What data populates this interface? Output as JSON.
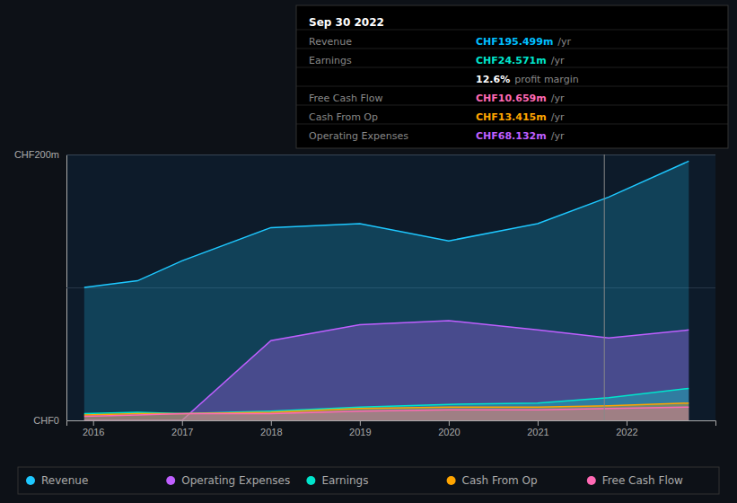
{
  "chart_data": {
    "type": "area",
    "x": [
      2015.9,
      2016.5,
      2017.0,
      2018.0,
      2019.0,
      2020.0,
      2021.0,
      2021.8,
      2022.7
    ],
    "xlim": [
      2015.7,
      2023.0
    ],
    "xticks": [
      2016,
      2017,
      2018,
      2019,
      2020,
      2021,
      2022
    ],
    "ylim": [
      0,
      200
    ],
    "yticks": [
      {
        "value": 0,
        "label": "CHF0"
      },
      {
        "value": 100,
        "label": ""
      },
      {
        "value": 200,
        "label": "CHF200m"
      }
    ],
    "grid": true,
    "legend": "bottom",
    "series": [
      {
        "name": "Revenue",
        "color": "#1ec8ff",
        "values": [
          100,
          105,
          120,
          145,
          148,
          135,
          148,
          168,
          195
        ]
      },
      {
        "name": "Operating Expenses",
        "color": "#bf5fff",
        "values": [
          0,
          0,
          0,
          60,
          72,
          75,
          68,
          62,
          68
        ]
      },
      {
        "name": "Earnings",
        "color": "#00e5cc",
        "values": [
          5,
          6,
          5,
          7,
          10,
          12,
          13,
          17,
          24
        ]
      },
      {
        "name": "Cash From Op",
        "color": "#ffa500",
        "values": [
          4,
          5,
          5,
          6,
          9,
          10,
          10,
          11,
          13
        ]
      },
      {
        "name": "Free Cash Flow",
        "color": "#ff69b4",
        "values": [
          3,
          4,
          5,
          5,
          7,
          8,
          8,
          9,
          10
        ]
      }
    ],
    "annotations": [
      {
        "text": "Sep 30 2022",
        "color": "#ffffff"
      },
      {
        "label": "Revenue",
        "value": "CHF195.499m",
        "unit": "/yr",
        "color": "#00bfff"
      },
      {
        "label": "Earnings",
        "value": "CHF24.571m",
        "unit": "/yr",
        "color": "#00e5cc"
      },
      {
        "value": "12.6%",
        "unit": "profit margin",
        "color": "#ffffff"
      },
      {
        "label": "Free Cash Flow",
        "value": "CHF10.659m",
        "unit": "/yr",
        "color": "#ff69b4"
      },
      {
        "label": "Cash From Op",
        "value": "CHF13.415m",
        "unit": "/yr",
        "color": "#ffa500"
      },
      {
        "label": "Operating Expenses",
        "value": "CHF68.132m",
        "unit": "/yr",
        "color": "#bf5fff"
      },
      {
        "x": 2021.75
      }
    ]
  }
}
